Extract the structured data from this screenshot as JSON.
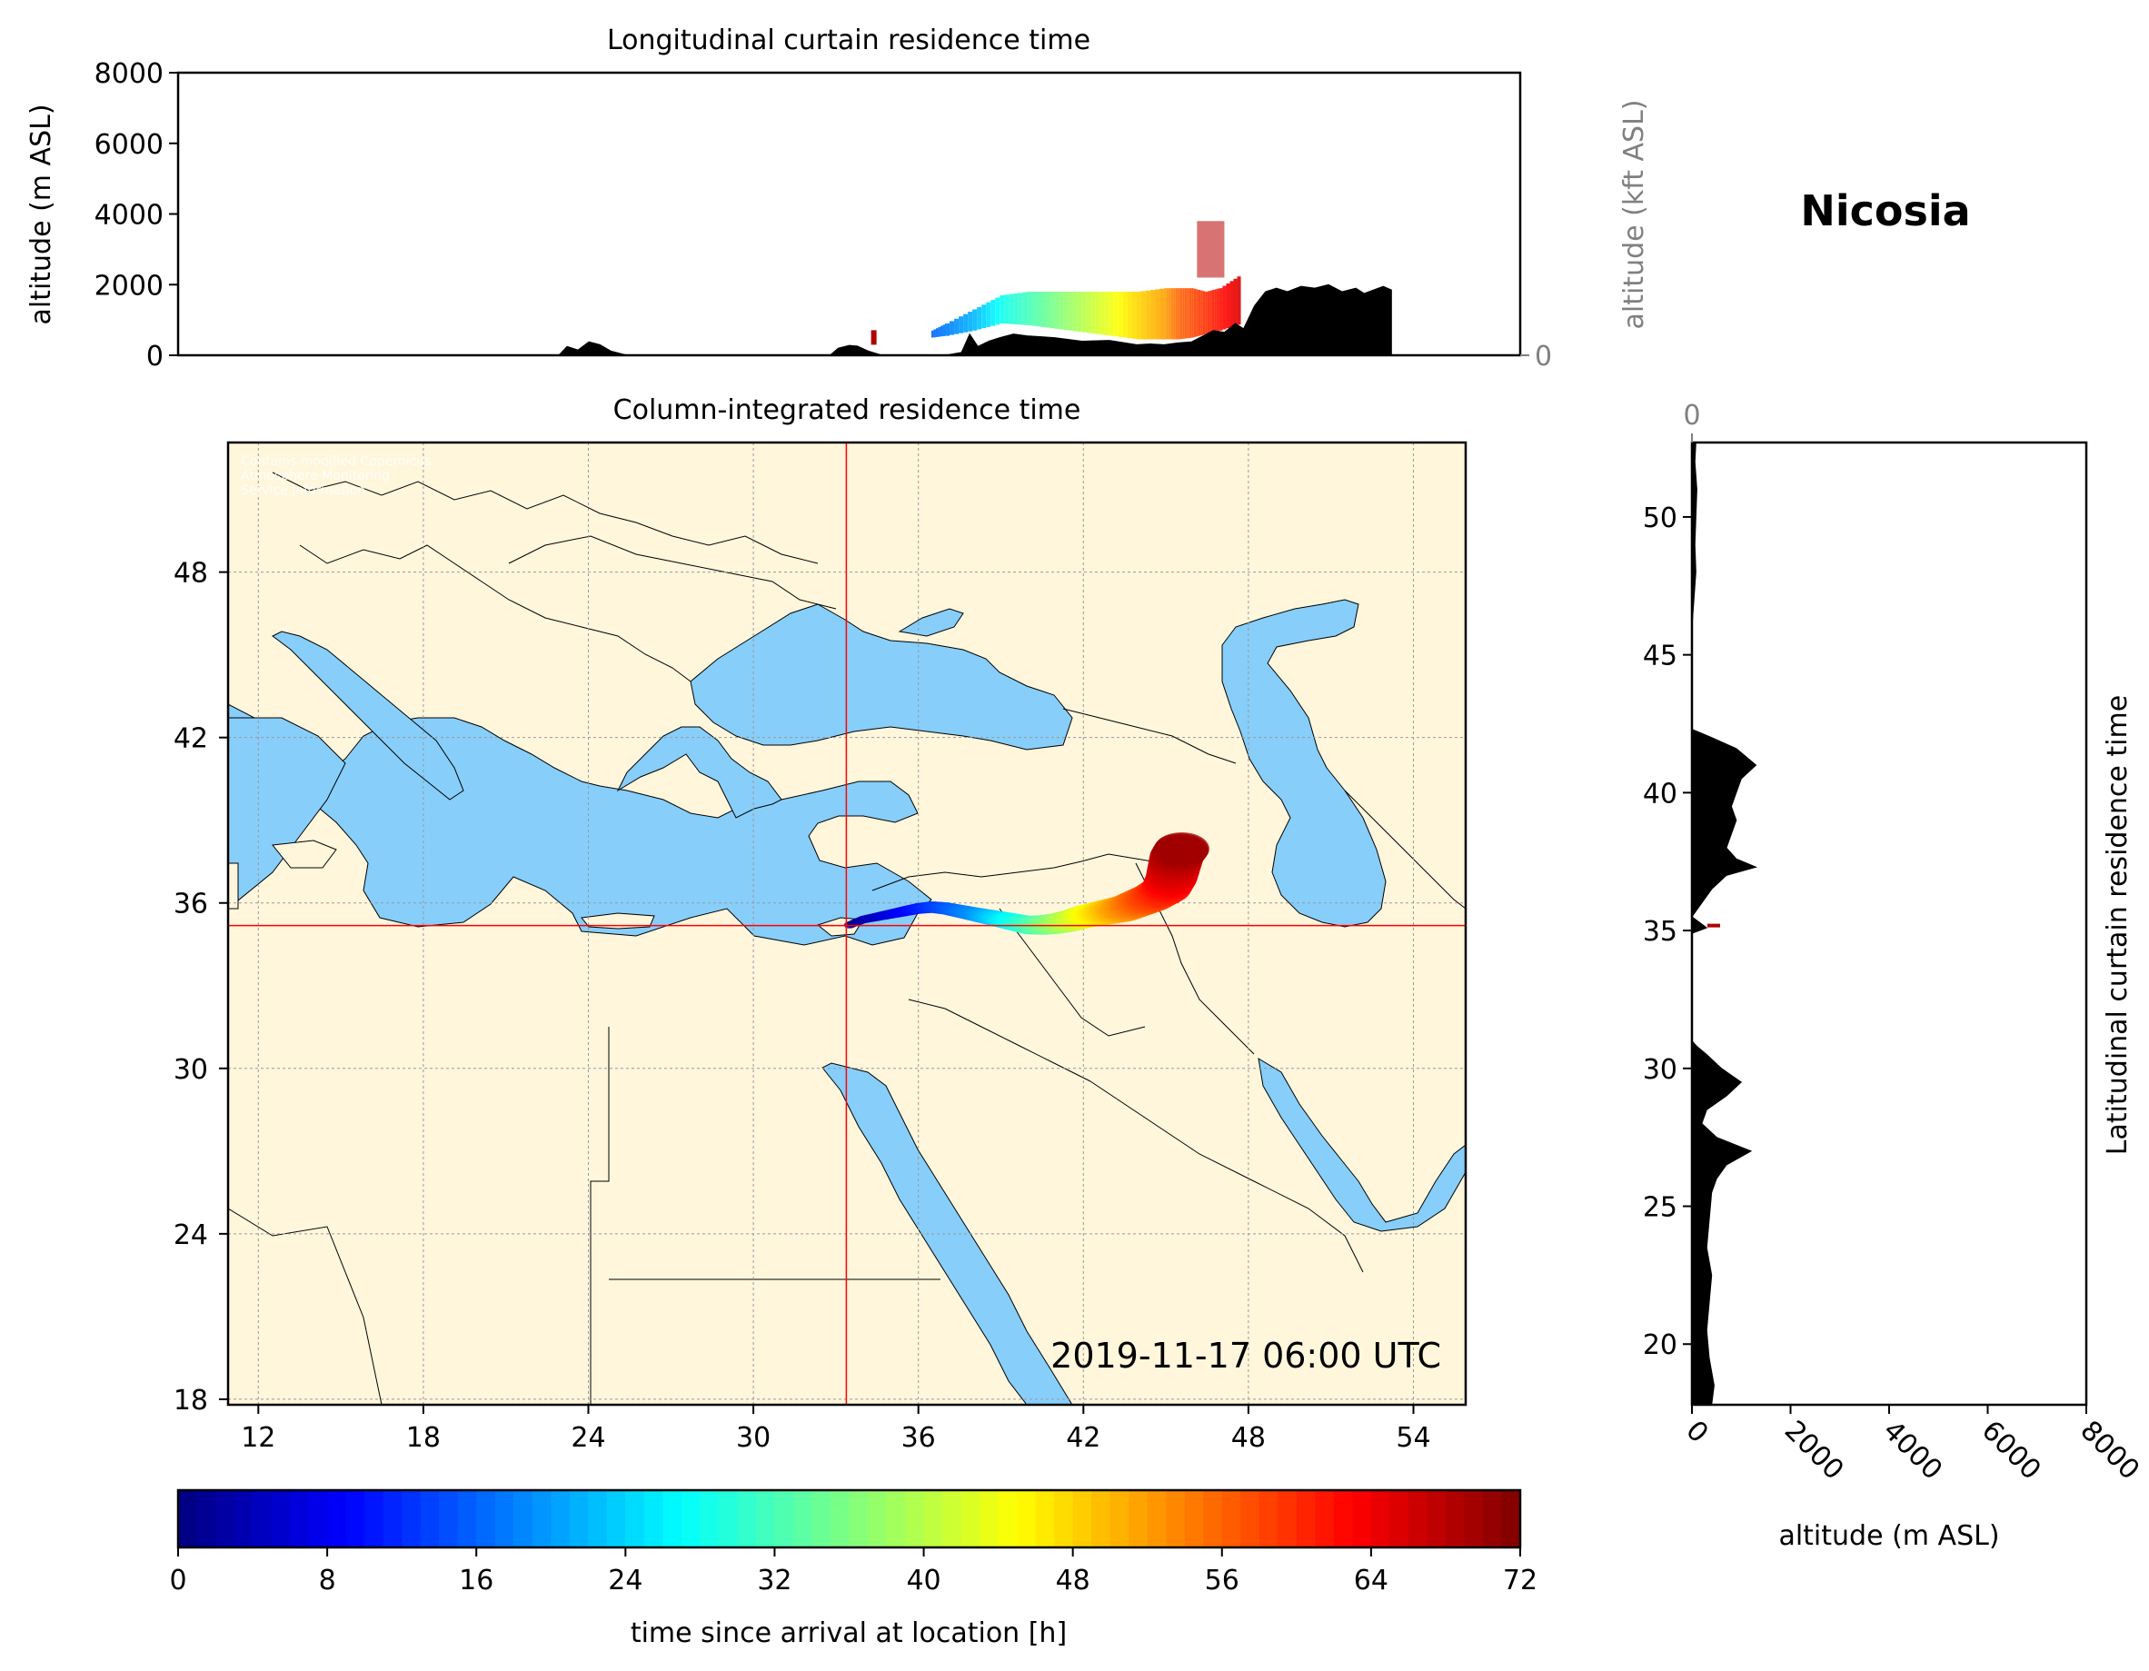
{
  "location_title": "Nicosia",
  "timestamp": "2019-11-17 06:00 UTC",
  "colors": {
    "sea": "#87cefa",
    "land": "#fff6dc",
    "terrain": "#000000",
    "crosshair": "#ff0000",
    "right_axis_gray": "#808080"
  },
  "chart_data": [
    {
      "type": "area",
      "panel": "longitudinal",
      "title": "Longitudinal curtain residence time",
      "ylabel": "altitude (m ASL)",
      "ylabel_right": "altitude (kft ASL)",
      "ylim": [
        0,
        8000
      ],
      "yticks": [
        0,
        2000,
        4000,
        6000,
        8000
      ],
      "yticks_right": [
        0,
        50,
        100
      ],
      "xlim": [
        8,
        57
      ],
      "terrain_profile": {
        "x": [
          8,
          21.9,
          22.2,
          22.6,
          23,
          23.4,
          23.8,
          24.2,
          24.4,
          31.8,
          32.1,
          32.5,
          32.8,
          33.2,
          33.5,
          33.7,
          34,
          35,
          36,
          36.6,
          36.9,
          37.2,
          37.6,
          38,
          38.5,
          39,
          40,
          41,
          42,
          43,
          43.5,
          44,
          44.5,
          45,
          45.3,
          45.8,
          46.2,
          46.6,
          46.9,
          47.3,
          47.7,
          48.1,
          48.5,
          49,
          49.5,
          50,
          50.5,
          51,
          51.3,
          52,
          52.3,
          52.3,
          57
        ],
        "y": [
          0,
          0,
          250,
          150,
          380,
          300,
          120,
          40,
          0,
          0,
          200,
          280,
          260,
          120,
          50,
          0,
          0,
          0,
          0,
          80,
          600,
          250,
          400,
          500,
          600,
          550,
          500,
          400,
          420,
          300,
          320,
          300,
          350,
          380,
          500,
          700,
          650,
          900,
          750,
          1400,
          1800,
          1900,
          1800,
          1950,
          1900,
          2000,
          1800,
          1900,
          1750,
          1950,
          1850,
          0,
          0
        ]
      },
      "release_point": {
        "x": 33.4,
        "y": 350
      },
      "release_line_alt": 400,
      "plume_band": {
        "x": [
          35.5,
          36,
          37,
          38,
          39,
          40,
          41,
          42,
          43,
          44,
          44.5,
          45,
          45.5,
          46,
          46.8
        ],
        "bottom": [
          500,
          550,
          700,
          900,
          850,
          750,
          650,
          550,
          450,
          450,
          450,
          500,
          600,
          700,
          900
        ],
        "top": [
          700,
          900,
          1300,
          1700,
          1800,
          1800,
          1800,
          1800,
          1800,
          1900,
          1900,
          1900,
          1800,
          1900,
          2300
        ],
        "hours": [
          16,
          18,
          22,
          28,
          32,
          36,
          40,
          44,
          48,
          52,
          56,
          58,
          60,
          62,
          66
        ]
      },
      "plume_spike": {
        "x0": 45.2,
        "x1": 46.2,
        "bottom": 2200,
        "top": 3800,
        "hours": 68
      }
    },
    {
      "type": "scatter",
      "panel": "map",
      "title": "Column-integrated residence time",
      "xlim": [
        10.9,
        55.9
      ],
      "ylim": [
        17.8,
        52.7
      ],
      "xticks": [
        12,
        18,
        24,
        30,
        36,
        42,
        48,
        54
      ],
      "yticks": [
        18,
        24,
        30,
        36,
        42,
        48
      ],
      "grid": true,
      "crosshair": {
        "lon": 33.38,
        "lat": 35.18
      },
      "plume_track": {
        "lon": [
          33.5,
          34.0,
          34.5,
          35.0,
          35.5,
          36.0,
          36.5,
          37.0,
          37.5,
          38.0,
          38.5,
          39.0,
          39.5,
          40.0,
          40.5,
          41.0,
          41.5,
          42.0,
          42.5,
          43.0,
          43.5,
          44.0,
          44.5,
          45.0,
          45.2,
          45.3,
          45.4,
          45.6
        ],
        "lat": [
          35.2,
          35.4,
          35.5,
          35.6,
          35.7,
          35.8,
          35.85,
          35.8,
          35.7,
          35.6,
          35.5,
          35.4,
          35.3,
          35.2,
          35.2,
          35.25,
          35.35,
          35.5,
          35.6,
          35.7,
          35.8,
          36.0,
          36.2,
          36.5,
          36.9,
          37.3,
          37.7,
          38.0
        ],
        "hours": [
          1,
          3,
          5,
          7,
          9,
          11,
          13,
          15,
          17,
          19,
          22,
          25,
          28,
          31,
          34,
          37,
          40,
          43,
          46,
          49,
          52,
          55,
          58,
          61,
          64,
          66,
          68,
          70
        ]
      }
    },
    {
      "type": "area",
      "panel": "latitudinal",
      "title": "Latitudinal curtain residence time",
      "xlabel": "altitude (m ASL)",
      "xlim": [
        0,
        8000
      ],
      "xticks": [
        0,
        2000,
        4000,
        6000,
        8000
      ],
      "xticks_top": [
        0,
        50,
        100
      ],
      "ylim": [
        17.8,
        52.7
      ],
      "yticks": [
        20,
        25,
        30,
        35,
        40,
        45,
        50
      ],
      "terrain_profile": {
        "lat": [
          17.8,
          18.5,
          19.5,
          20.5,
          21.5,
          22.5,
          23.5,
          24.5,
          25.5,
          26.0,
          26.5,
          27.0,
          27.5,
          28.0,
          28.5,
          29.0,
          29.5,
          30.0,
          30.5,
          30.8,
          31.0,
          34.9,
          35.1,
          35.3,
          35.5,
          36.0,
          36.5,
          37.0,
          37.3,
          37.6,
          38.0,
          38.5,
          39.0,
          39.5,
          40.0,
          40.5,
          41.0,
          41.3,
          41.6,
          42.0,
          42.3,
          46.0,
          47.0,
          48.0,
          49.0,
          50.0,
          51.0,
          52.0,
          52.7
        ],
        "alt": [
          400,
          450,
          350,
          300,
          350,
          400,
          300,
          350,
          400,
          500,
          700,
          1200,
          500,
          200,
          300,
          700,
          1000,
          600,
          300,
          100,
          0,
          0,
          300,
          150,
          0,
          200,
          400,
          700,
          1300,
          900,
          700,
          800,
          900,
          800,
          900,
          1000,
          1300,
          1100,
          900,
          400,
          0,
          0,
          40,
          80,
          60,
          80,
          100,
          60,
          80
        ]
      },
      "release_marker": {
        "lat": 35.18,
        "alt": 350
      }
    }
  ],
  "colorbar": {
    "label": "time since arrival at location [h]",
    "min": 0,
    "max": 72,
    "ticks": [
      0,
      8,
      16,
      24,
      32,
      40,
      48,
      56,
      64,
      72
    ],
    "colormap": "jet"
  },
  "watermark": [
    "Contains modified Copernicus",
    "Atmosphere Monitoring",
    "Service information"
  ]
}
